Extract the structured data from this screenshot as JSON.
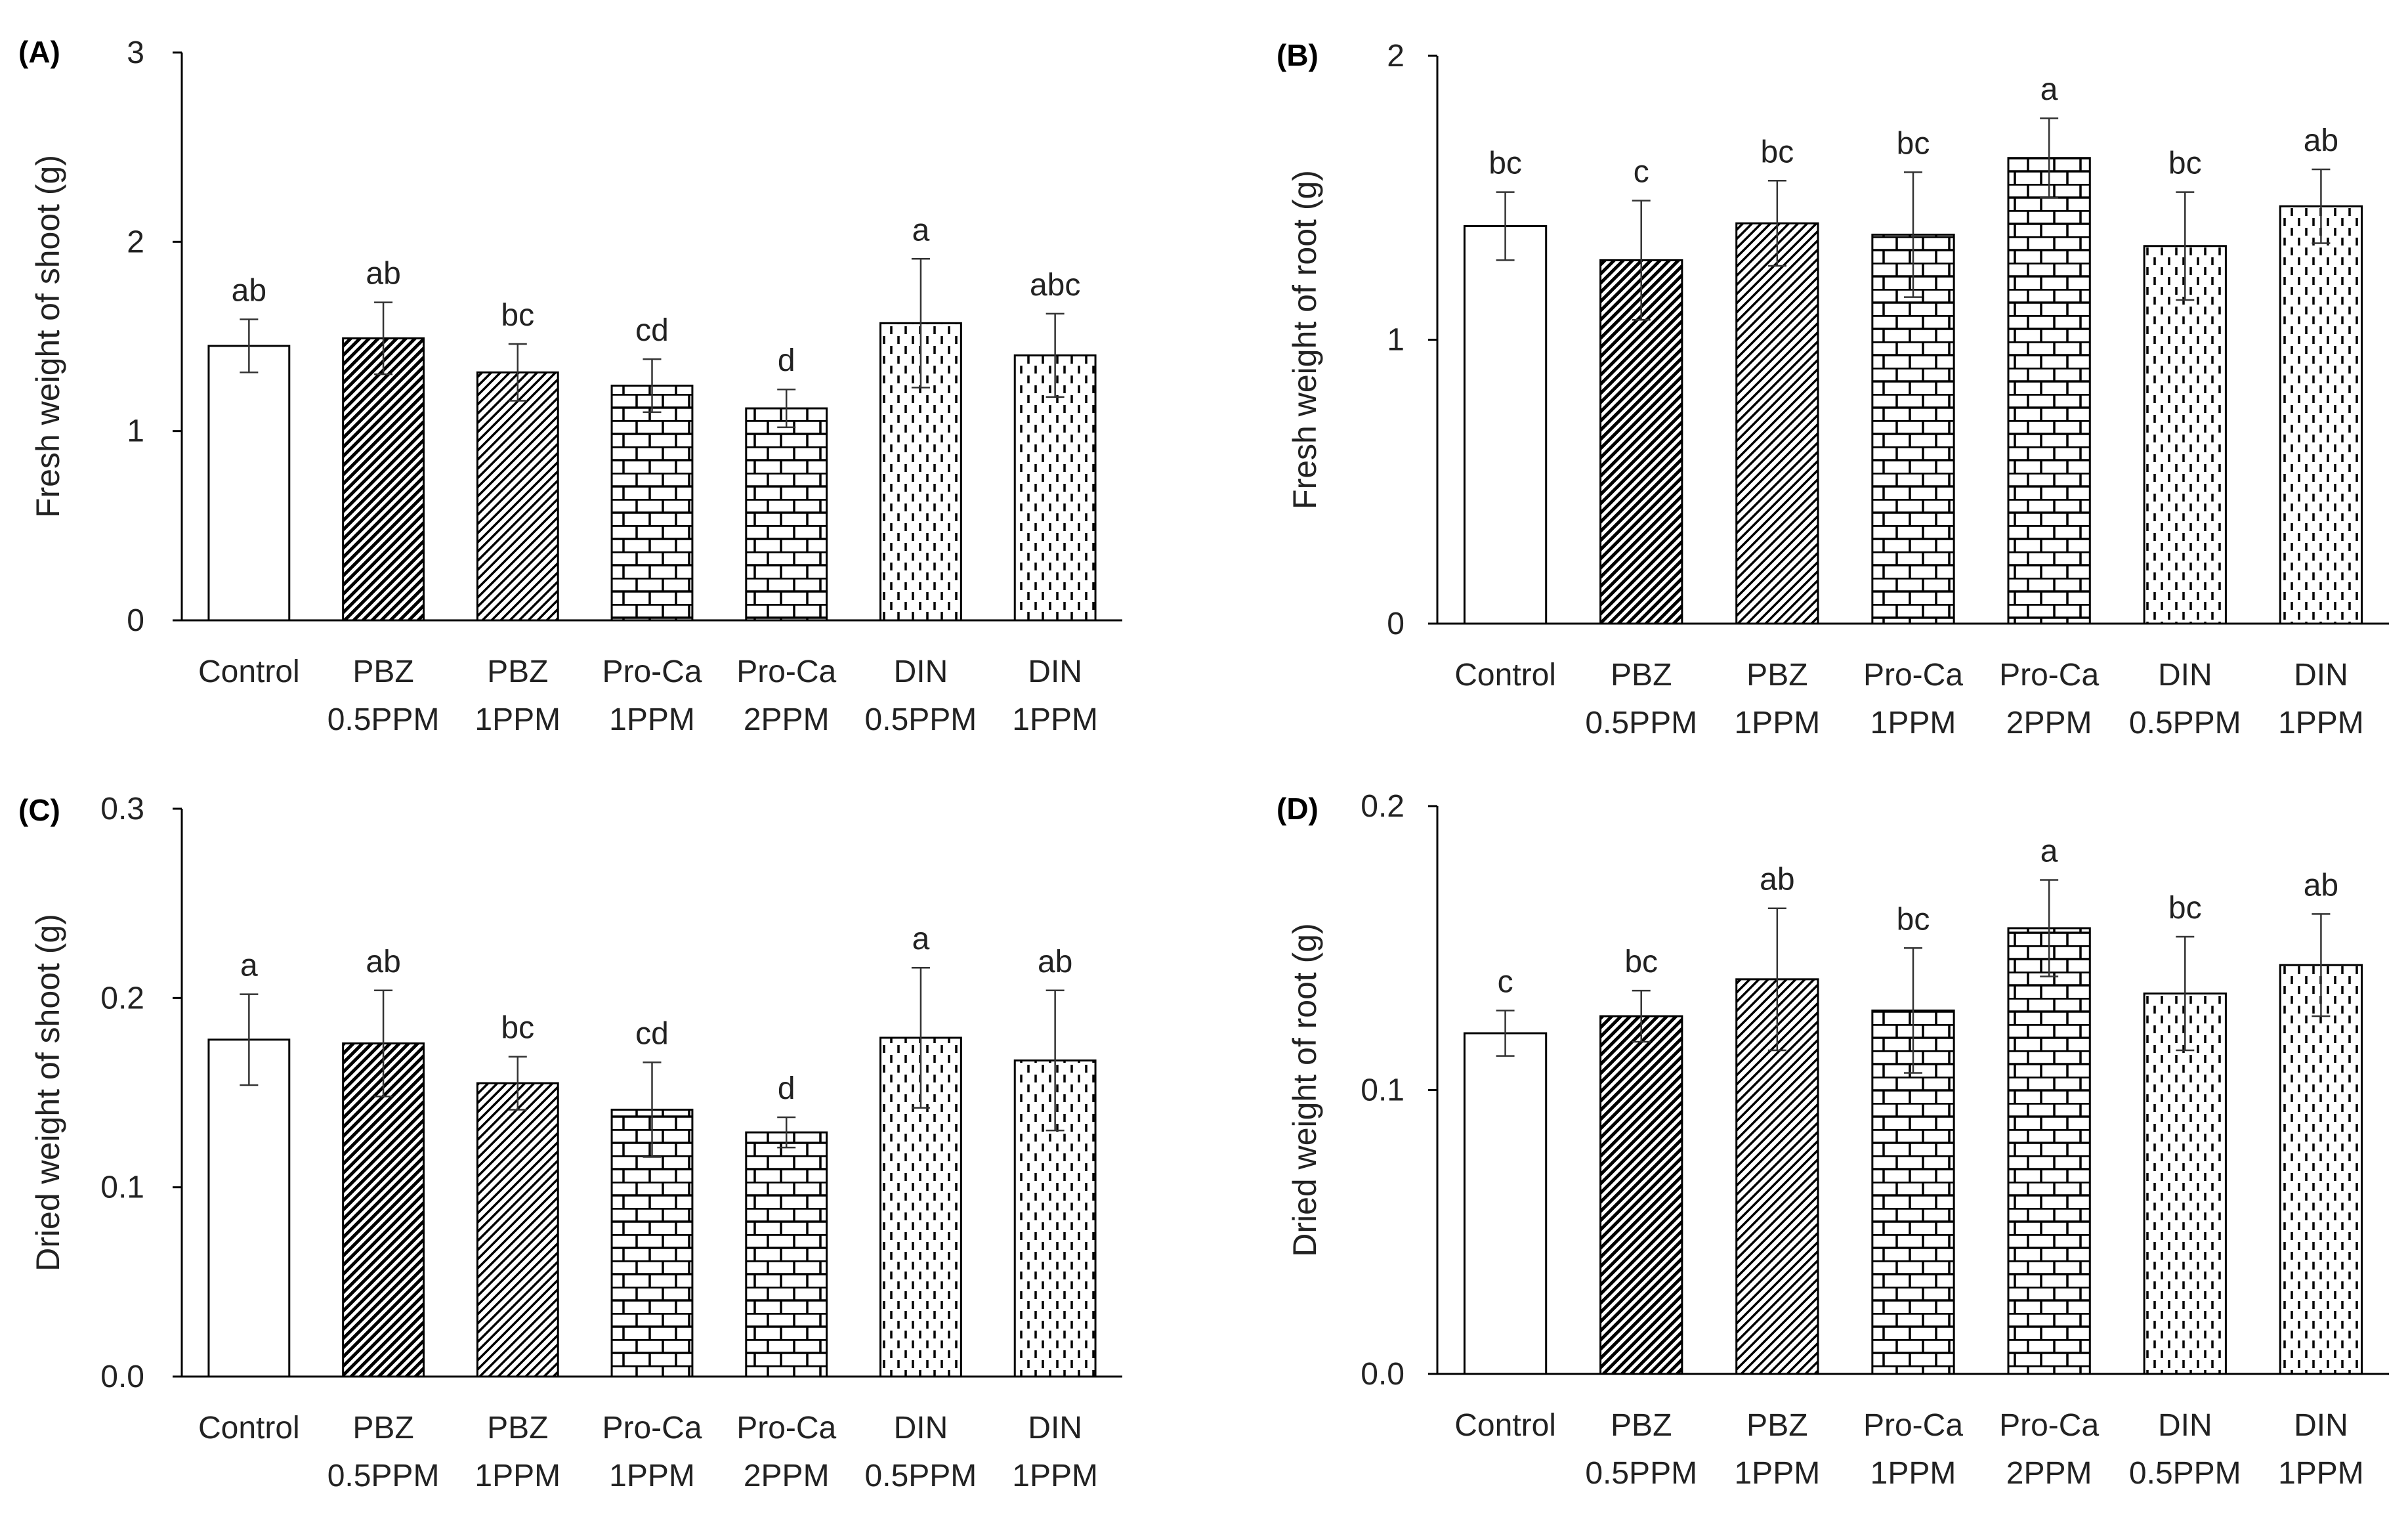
{
  "chart_data": [
    {
      "panel": "(A)",
      "type": "bar",
      "ylabel": "Fresh weight of shoot (g)",
      "ylim": [
        0,
        3
      ],
      "yticks": [
        "0",
        "1",
        "2",
        "3"
      ],
      "categories": [
        [
          "Control"
        ],
        [
          "PBZ",
          "0.5PPM"
        ],
        [
          "PBZ",
          "1PPM"
        ],
        [
          "Pro-Ca",
          "1PPM"
        ],
        [
          "Pro-Ca",
          "2PPM"
        ],
        [
          "DIN",
          "0.5PPM"
        ],
        [
          "DIN",
          "1PPM"
        ]
      ],
      "values": [
        1.45,
        1.49,
        1.31,
        1.24,
        1.12,
        1.57,
        1.4
      ],
      "errors": [
        0.14,
        0.19,
        0.15,
        0.14,
        0.1,
        0.34,
        0.22
      ],
      "letters": [
        "ab",
        "ab",
        "bc",
        "cd",
        "d",
        "a",
        "abc"
      ]
    },
    {
      "panel": "(B)",
      "type": "bar",
      "ylabel": "Fresh weight of root (g)",
      "ylim": [
        0,
        2
      ],
      "yticks": [
        "0",
        "1",
        "2"
      ],
      "categories": [
        [
          "Control"
        ],
        [
          "PBZ",
          "0.5PPM"
        ],
        [
          "PBZ",
          "1PPM"
        ],
        [
          "Pro-Ca",
          "1PPM"
        ],
        [
          "Pro-Ca",
          "2PPM"
        ],
        [
          "DIN",
          "0.5PPM"
        ],
        [
          "DIN",
          "1PPM"
        ]
      ],
      "values": [
        1.4,
        1.28,
        1.41,
        1.37,
        1.64,
        1.33,
        1.47
      ],
      "errors": [
        0.12,
        0.21,
        0.15,
        0.22,
        0.14,
        0.19,
        0.13
      ],
      "letters": [
        "bc",
        "c",
        "bc",
        "bc",
        "a",
        "bc",
        "ab"
      ]
    },
    {
      "panel": "(C)",
      "type": "bar",
      "ylabel": "Dried weight of shoot (g)",
      "ylim": [
        0,
        0.3
      ],
      "yticks": [
        "0.0",
        "0.1",
        "0.2",
        "0.3"
      ],
      "categories": [
        [
          "Control"
        ],
        [
          "PBZ",
          "0.5PPM"
        ],
        [
          "PBZ",
          "1PPM"
        ],
        [
          "Pro-Ca",
          "1PPM"
        ],
        [
          "Pro-Ca",
          "2PPM"
        ],
        [
          "DIN",
          "0.5PPM"
        ],
        [
          "DIN",
          "1PPM"
        ]
      ],
      "values": [
        0.178,
        0.176,
        0.155,
        0.141,
        0.129,
        0.179,
        0.167
      ],
      "errors": [
        0.024,
        0.028,
        0.014,
        0.025,
        0.008,
        0.037,
        0.037
      ],
      "letters": [
        "a",
        "ab",
        "bc",
        "cd",
        "d",
        "a",
        "ab"
      ]
    },
    {
      "panel": "(D)",
      "type": "bar",
      "ylabel": "Dried weight of root (g)",
      "ylim": [
        0,
        0.2
      ],
      "yticks": [
        "0.0",
        "0.1",
        "0.2"
      ],
      "categories": [
        [
          "Control"
        ],
        [
          "PBZ",
          "0.5PPM"
        ],
        [
          "PBZ",
          "1PPM"
        ],
        [
          "Pro-Ca",
          "1PPM"
        ],
        [
          "Pro-Ca",
          "2PPM"
        ],
        [
          "DIN",
          "0.5PPM"
        ],
        [
          "DIN",
          "1PPM"
        ]
      ],
      "values": [
        0.12,
        0.126,
        0.139,
        0.128,
        0.157,
        0.134,
        0.144
      ],
      "errors": [
        0.008,
        0.009,
        0.025,
        0.022,
        0.017,
        0.02,
        0.018
      ],
      "letters": [
        "c",
        "bc",
        "ab",
        "bc",
        "a",
        "bc",
        "ab"
      ]
    }
  ],
  "bar_patterns": [
    "open",
    "diag-dense",
    "diag-sparse",
    "brick",
    "brick",
    "dashes",
    "dashes"
  ],
  "colors": {
    "stroke": "#000000",
    "fill": "#ffffff",
    "axis": "#000000",
    "text": "#222222"
  }
}
